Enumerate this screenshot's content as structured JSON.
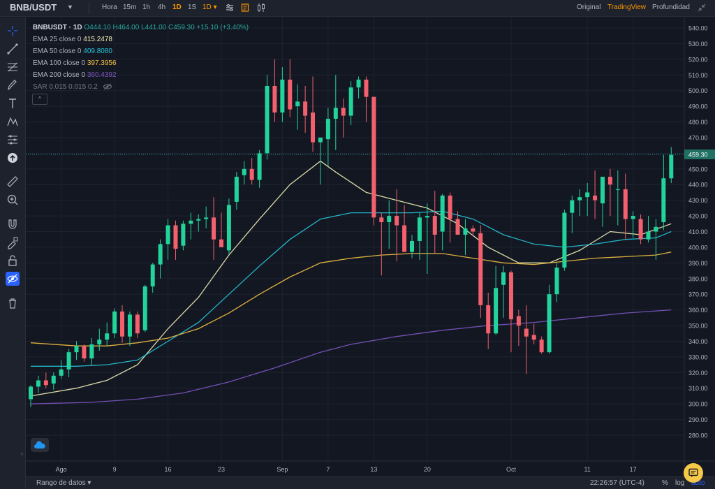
{
  "topbar": {
    "symbol": "BNB/USDT",
    "intervals": [
      "Hora",
      "15m",
      "1h",
      "4h",
      "1D",
      "1S"
    ],
    "active_interval": "1D",
    "interval_dropdown": "1D",
    "view_modes": [
      "Original",
      "TradingView",
      "Profundidad"
    ],
    "active_view": "TradingView"
  },
  "sidebar": {
    "tools": [
      "crosshair-icon",
      "trend-line-icon",
      "fib-icon",
      "brush-icon",
      "text-icon",
      "pattern-icon",
      "prediction-icon",
      "arrow-up-circle-icon",
      "ruler-icon",
      "zoom-in-icon",
      "magnet-icon",
      "lock-draw-icon",
      "lock-icon",
      "hide-icon",
      "trash-icon"
    ]
  },
  "legend": {
    "symbol_line": {
      "symbol": "BNBUSDT · 1D",
      "ohlc": "O444.10 H464.00 L441.00 C459.30 +15.10 (+3.40%)"
    },
    "indicators": [
      {
        "label": "EMA 25 close 0",
        "value": "415.2478",
        "color": "#f3efb8"
      },
      {
        "label": "EMA 50 close 0",
        "value": "409.8080",
        "color": "#26c6da"
      },
      {
        "label": "EMA 100 close 0",
        "value": "397.3956",
        "color": "#f5c242"
      },
      {
        "label": "EMA 200 close 0",
        "value": "360.4392",
        "color": "#7e57c2"
      },
      {
        "label": "SAR 0.015 0.015 0.2",
        "value": "",
        "color": "#787b86"
      }
    ],
    "collapse": "^"
  },
  "bottombar": {
    "range_label": "Rango de datos",
    "clock": "22:26:57 (UTC-4)",
    "percent": "%",
    "log": "log",
    "auto": "auto"
  },
  "colors": {
    "up": "#26a69a",
    "down": "#ef5350",
    "up_bright": "#22d39b",
    "down_bright": "#f2616d",
    "bg": "#131722",
    "grid": "#1f2330",
    "text": "#b2b5be",
    "price_line": "#26a69a"
  },
  "chart_data": {
    "type": "candlestick",
    "y_axis": {
      "min": 280,
      "max": 540,
      "ticks": [
        540,
        530,
        520,
        510,
        500,
        490,
        480,
        470,
        460,
        450,
        440,
        430,
        420,
        410,
        400,
        390,
        380,
        370,
        360,
        350,
        340,
        330,
        320,
        310,
        300,
        290,
        280
      ]
    },
    "x_axis_labels": [
      {
        "text": "Ago",
        "index": 4
      },
      {
        "text": "9",
        "index": 11
      },
      {
        "text": "16",
        "index": 18
      },
      {
        "text": "23",
        "index": 25
      },
      {
        "text": "Sep",
        "index": 33
      },
      {
        "text": "7",
        "index": 39
      },
      {
        "text": "13",
        "index": 45
      },
      {
        "text": "20",
        "index": 52
      },
      {
        "text": "Oct",
        "index": 63
      },
      {
        "text": "11",
        "index": 73
      },
      {
        "text": "17",
        "index": 79
      }
    ],
    "current_price": {
      "value": 459.3,
      "label": "459.30"
    },
    "candles": [
      [
        303,
        312,
        298,
        311
      ],
      [
        311,
        318,
        307,
        315
      ],
      [
        315,
        320,
        310,
        312
      ],
      [
        313,
        320,
        309,
        318
      ],
      [
        318,
        328,
        316,
        322
      ],
      [
        322,
        335,
        317,
        333
      ],
      [
        333,
        340,
        328,
        337
      ],
      [
        337,
        338,
        327,
        329
      ],
      [
        329,
        342,
        325,
        338
      ],
      [
        338,
        348,
        334,
        341
      ],
      [
        341,
        352,
        337,
        345
      ],
      [
        345,
        361,
        342,
        359
      ],
      [
        359,
        363,
        339,
        343
      ],
      [
        343,
        359,
        337,
        357
      ],
      [
        357,
        359,
        342,
        345
      ],
      [
        347,
        376,
        346,
        375
      ],
      [
        375,
        390,
        371,
        389
      ],
      [
        389,
        405,
        380,
        402
      ],
      [
        402,
        418,
        392,
        414
      ],
      [
        414,
        417,
        392,
        399
      ],
      [
        401,
        417,
        398,
        415
      ],
      [
        415,
        422,
        405,
        417
      ],
      [
        417,
        421,
        410,
        418
      ],
      [
        418,
        426,
        412,
        419
      ],
      [
        419,
        432,
        392,
        405
      ],
      [
        405,
        422,
        400,
        400
      ],
      [
        398,
        431,
        395,
        427
      ],
      [
        429,
        448,
        424,
        445
      ],
      [
        446,
        455,
        440,
        450
      ],
      [
        450,
        457,
        440,
        443
      ],
      [
        443,
        462,
        438,
        460
      ],
      [
        460,
        510,
        456,
        503
      ],
      [
        503,
        520,
        480,
        486
      ],
      [
        486,
        515,
        480,
        507
      ],
      [
        507,
        520,
        483,
        488
      ],
      [
        490,
        504,
        475,
        493
      ],
      [
        493,
        503,
        473,
        484
      ],
      [
        486,
        509,
        461,
        467
      ],
      [
        467,
        470,
        440,
        470
      ],
      [
        469,
        489,
        452,
        482
      ],
      [
        482,
        510,
        462,
        489
      ],
      [
        489,
        495,
        470,
        484
      ],
      [
        484,
        506,
        478,
        502
      ],
      [
        502,
        509,
        495,
        507
      ],
      [
        507,
        509,
        480,
        496
      ],
      [
        496,
        496,
        414,
        419
      ],
      [
        419,
        422,
        382,
        416
      ],
      [
        416,
        430,
        399,
        420
      ],
      [
        420,
        437,
        391,
        414
      ],
      [
        414,
        427,
        398,
        397
      ],
      [
        397,
        408,
        393,
        404
      ],
      [
        404,
        422,
        392,
        419
      ],
      [
        419,
        428,
        383,
        420
      ],
      [
        420,
        436,
        396,
        408
      ],
      [
        410,
        434,
        398,
        433
      ],
      [
        433,
        435,
        403,
        418
      ],
      [
        418,
        423,
        410,
        408
      ],
      [
        408,
        418,
        395,
        412
      ],
      [
        412,
        414,
        407,
        410
      ],
      [
        409,
        414,
        355,
        363
      ],
      [
        363,
        371,
        335,
        345
      ],
      [
        345,
        388,
        344,
        374
      ],
      [
        376,
        388,
        355,
        384
      ],
      [
        384,
        385,
        333,
        354
      ],
      [
        356,
        360,
        337,
        350
      ],
      [
        348,
        363,
        319,
        343
      ],
      [
        344,
        351,
        338,
        341
      ],
      [
        341,
        343,
        332,
        333
      ],
      [
        333,
        376,
        332,
        370
      ],
      [
        370,
        390,
        365,
        387
      ],
      [
        387,
        424,
        385,
        422
      ],
      [
        422,
        433,
        409,
        430
      ],
      [
        430,
        437,
        420,
        432
      ],
      [
        432,
        441,
        420,
        435
      ],
      [
        433,
        449,
        418,
        430
      ],
      [
        428,
        444,
        413,
        445
      ],
      [
        445,
        450,
        420,
        440
      ],
      [
        437,
        449,
        414,
        437
      ],
      [
        437,
        447,
        405,
        418
      ],
      [
        418,
        423,
        406,
        420
      ],
      [
        418,
        421,
        402,
        405
      ],
      [
        405,
        420,
        403,
        410
      ],
      [
        410,
        418,
        392,
        413
      ],
      [
        416,
        459,
        411,
        444
      ],
      [
        444,
        464,
        441,
        459
      ]
    ],
    "ema_series": [
      {
        "name": "EMA 25",
        "color": "#f3efb8",
        "points": [
          [
            0,
            305
          ],
          [
            6,
            310
          ],
          [
            10,
            315
          ],
          [
            14,
            325
          ],
          [
            18,
            348
          ],
          [
            22,
            368
          ],
          [
            26,
            395
          ],
          [
            30,
            418
          ],
          [
            34,
            440
          ],
          [
            38,
            455
          ],
          [
            40,
            448
          ],
          [
            44,
            435
          ],
          [
            48,
            430
          ],
          [
            52,
            425
          ],
          [
            56,
            415
          ],
          [
            60,
            400
          ],
          [
            64,
            390
          ],
          [
            68,
            390
          ],
          [
            72,
            398
          ],
          [
            76,
            410
          ],
          [
            80,
            408
          ],
          [
            84,
            415
          ]
        ]
      },
      {
        "name": "EMA 50",
        "color": "#26c6da",
        "points": [
          [
            0,
            324
          ],
          [
            6,
            324
          ],
          [
            10,
            325
          ],
          [
            14,
            328
          ],
          [
            18,
            340
          ],
          [
            22,
            352
          ],
          [
            26,
            370
          ],
          [
            30,
            388
          ],
          [
            34,
            405
          ],
          [
            38,
            418
          ],
          [
            42,
            422
          ],
          [
            46,
            422
          ],
          [
            50,
            422
          ],
          [
            54,
            423
          ],
          [
            58,
            418
          ],
          [
            62,
            408
          ],
          [
            66,
            402
          ],
          [
            70,
            400
          ],
          [
            74,
            402
          ],
          [
            78,
            405
          ],
          [
            82,
            406
          ],
          [
            84,
            410
          ]
        ]
      },
      {
        "name": "EMA 100",
        "color": "#f5c242",
        "points": [
          [
            0,
            339
          ],
          [
            6,
            337
          ],
          [
            10,
            337
          ],
          [
            14,
            339
          ],
          [
            18,
            342
          ],
          [
            22,
            348
          ],
          [
            26,
            358
          ],
          [
            30,
            370
          ],
          [
            34,
            381
          ],
          [
            38,
            390
          ],
          [
            42,
            393
          ],
          [
            46,
            395
          ],
          [
            50,
            396
          ],
          [
            54,
            396
          ],
          [
            58,
            393
          ],
          [
            62,
            390
          ],
          [
            66,
            389
          ],
          [
            70,
            391
          ],
          [
            74,
            393
          ],
          [
            78,
            394
          ],
          [
            82,
            395
          ],
          [
            84,
            397
          ]
        ]
      },
      {
        "name": "EMA 200",
        "color": "#7e57c2",
        "points": [
          [
            0,
            300
          ],
          [
            8,
            301
          ],
          [
            14,
            303
          ],
          [
            20,
            307
          ],
          [
            26,
            314
          ],
          [
            32,
            323
          ],
          [
            38,
            333
          ],
          [
            42,
            338
          ],
          [
            48,
            343
          ],
          [
            54,
            347
          ],
          [
            60,
            350
          ],
          [
            66,
            352
          ],
          [
            72,
            355
          ],
          [
            78,
            358
          ],
          [
            84,
            360
          ]
        ]
      }
    ]
  }
}
